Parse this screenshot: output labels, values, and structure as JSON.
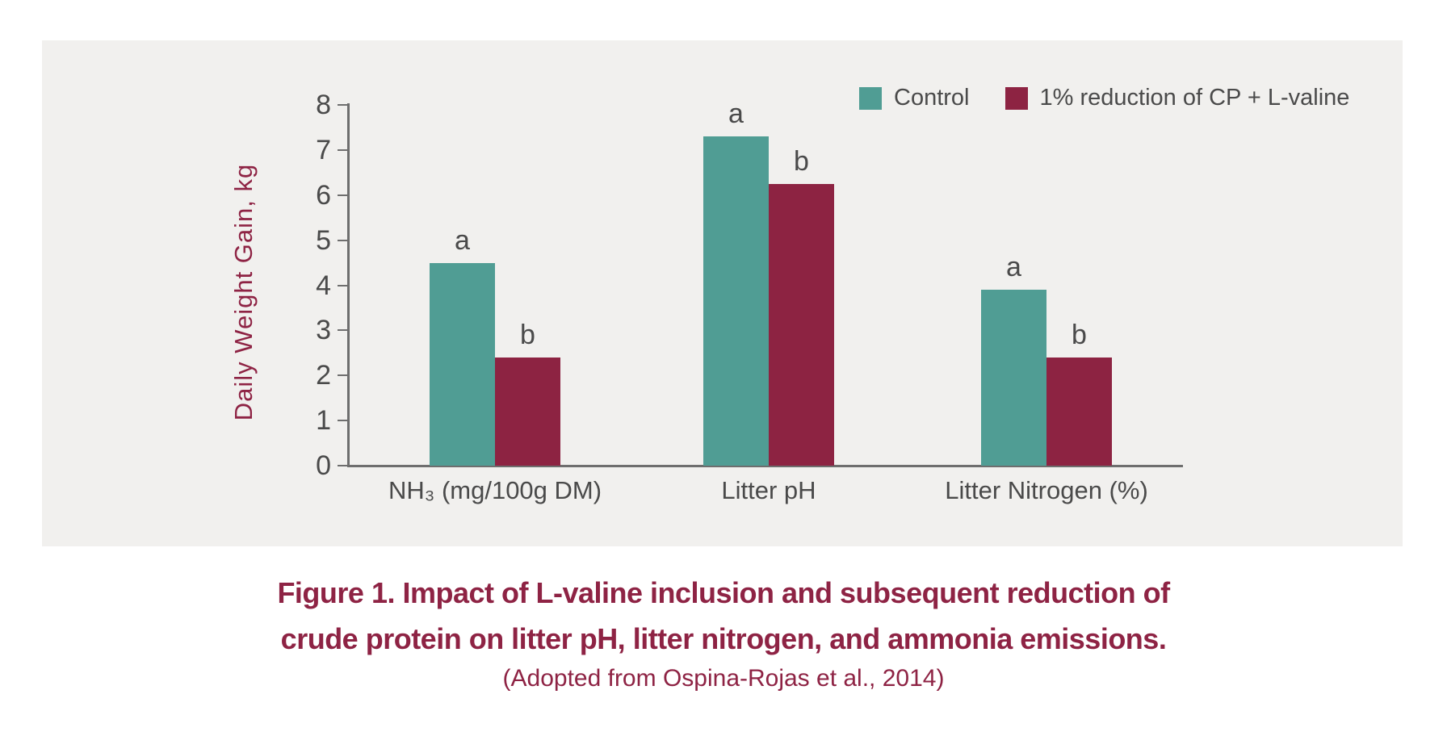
{
  "panel": {
    "background": "#F1F0EE"
  },
  "chart_data": {
    "type": "bar",
    "title": "",
    "categories": [
      "NH₃ (mg/100g DM)",
      "Litter pH",
      "Litter Nitrogen (%)"
    ],
    "series": [
      {
        "name": "Control",
        "color": "#509D94",
        "values": [
          4.5,
          7.3,
          3.9
        ],
        "sig_labels": [
          "a",
          "a",
          "a"
        ]
      },
      {
        "name": "1% reduction of CP + L-valine",
        "color": "#8D2342",
        "values": [
          2.4,
          6.25,
          2.4
        ],
        "sig_labels": [
          "b",
          "b",
          "b"
        ]
      }
    ],
    "xlabel": "",
    "ylabel": "Daily Weight Gain, kg",
    "ylim": [
      0,
      8
    ],
    "ytick_step": 1,
    "yticks": [
      0,
      1,
      2,
      3,
      4,
      5,
      6,
      7,
      8
    ],
    "grid": false,
    "legend_position": "top-right"
  },
  "caption": {
    "line1": "Figure 1. Impact of L-valine inclusion and subsequent reduction of",
    "line2": "crude protein on litter pH, litter nitrogen, and ammonia emissions.",
    "source": "(Adopted from Ospina-Rojas et al., 2014)"
  },
  "colors": {
    "accent_maroon": "#8E2344",
    "teal": "#509D94",
    "bar_maroon": "#8D2342",
    "text_gray": "#4A4A4A",
    "axis_gray": "#6E6E6E",
    "panel_background": "#F1F0EE"
  }
}
